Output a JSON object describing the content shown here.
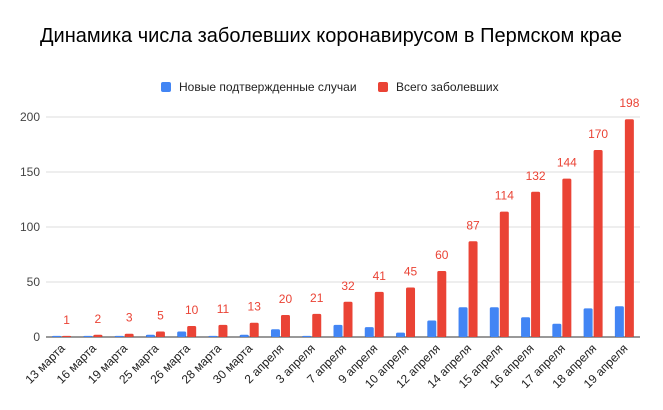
{
  "chart_data": {
    "type": "bar",
    "title": "Динамика числа заболевших коронавирусом в Пермском крае",
    "xlabel": "",
    "ylabel": "",
    "ylim": [
      0,
      200
    ],
    "yticks": [
      0,
      50,
      100,
      150,
      200
    ],
    "grid": true,
    "legend_position": "top",
    "categories": [
      "13 марта",
      "16 марта",
      "19 марта",
      "25 марта",
      "26 марта",
      "28 марта",
      "30 марта",
      "2 апреля",
      "3 апреля",
      "7 апреля",
      "9 апреля",
      "10 апреля",
      "12 апреля",
      "14 апреля",
      "15 апреля",
      "16 апреля",
      "17 апреля",
      "18 апреля",
      "19 апреля"
    ],
    "series": [
      {
        "name": "Новые подтвержденные случаи",
        "color": "#4285f4",
        "values": [
          1,
          1,
          1,
          2,
          5,
          1,
          2,
          7,
          1,
          11,
          9,
          4,
          15,
          27,
          27,
          18,
          12,
          26,
          28
        ],
        "show_labels": false
      },
      {
        "name": "Всего заболевших",
        "color": "#ea4335",
        "values": [
          1,
          2,
          3,
          5,
          10,
          11,
          13,
          20,
          21,
          32,
          41,
          45,
          60,
          87,
          114,
          132,
          144,
          170,
          198
        ],
        "show_labels": true
      }
    ]
  }
}
